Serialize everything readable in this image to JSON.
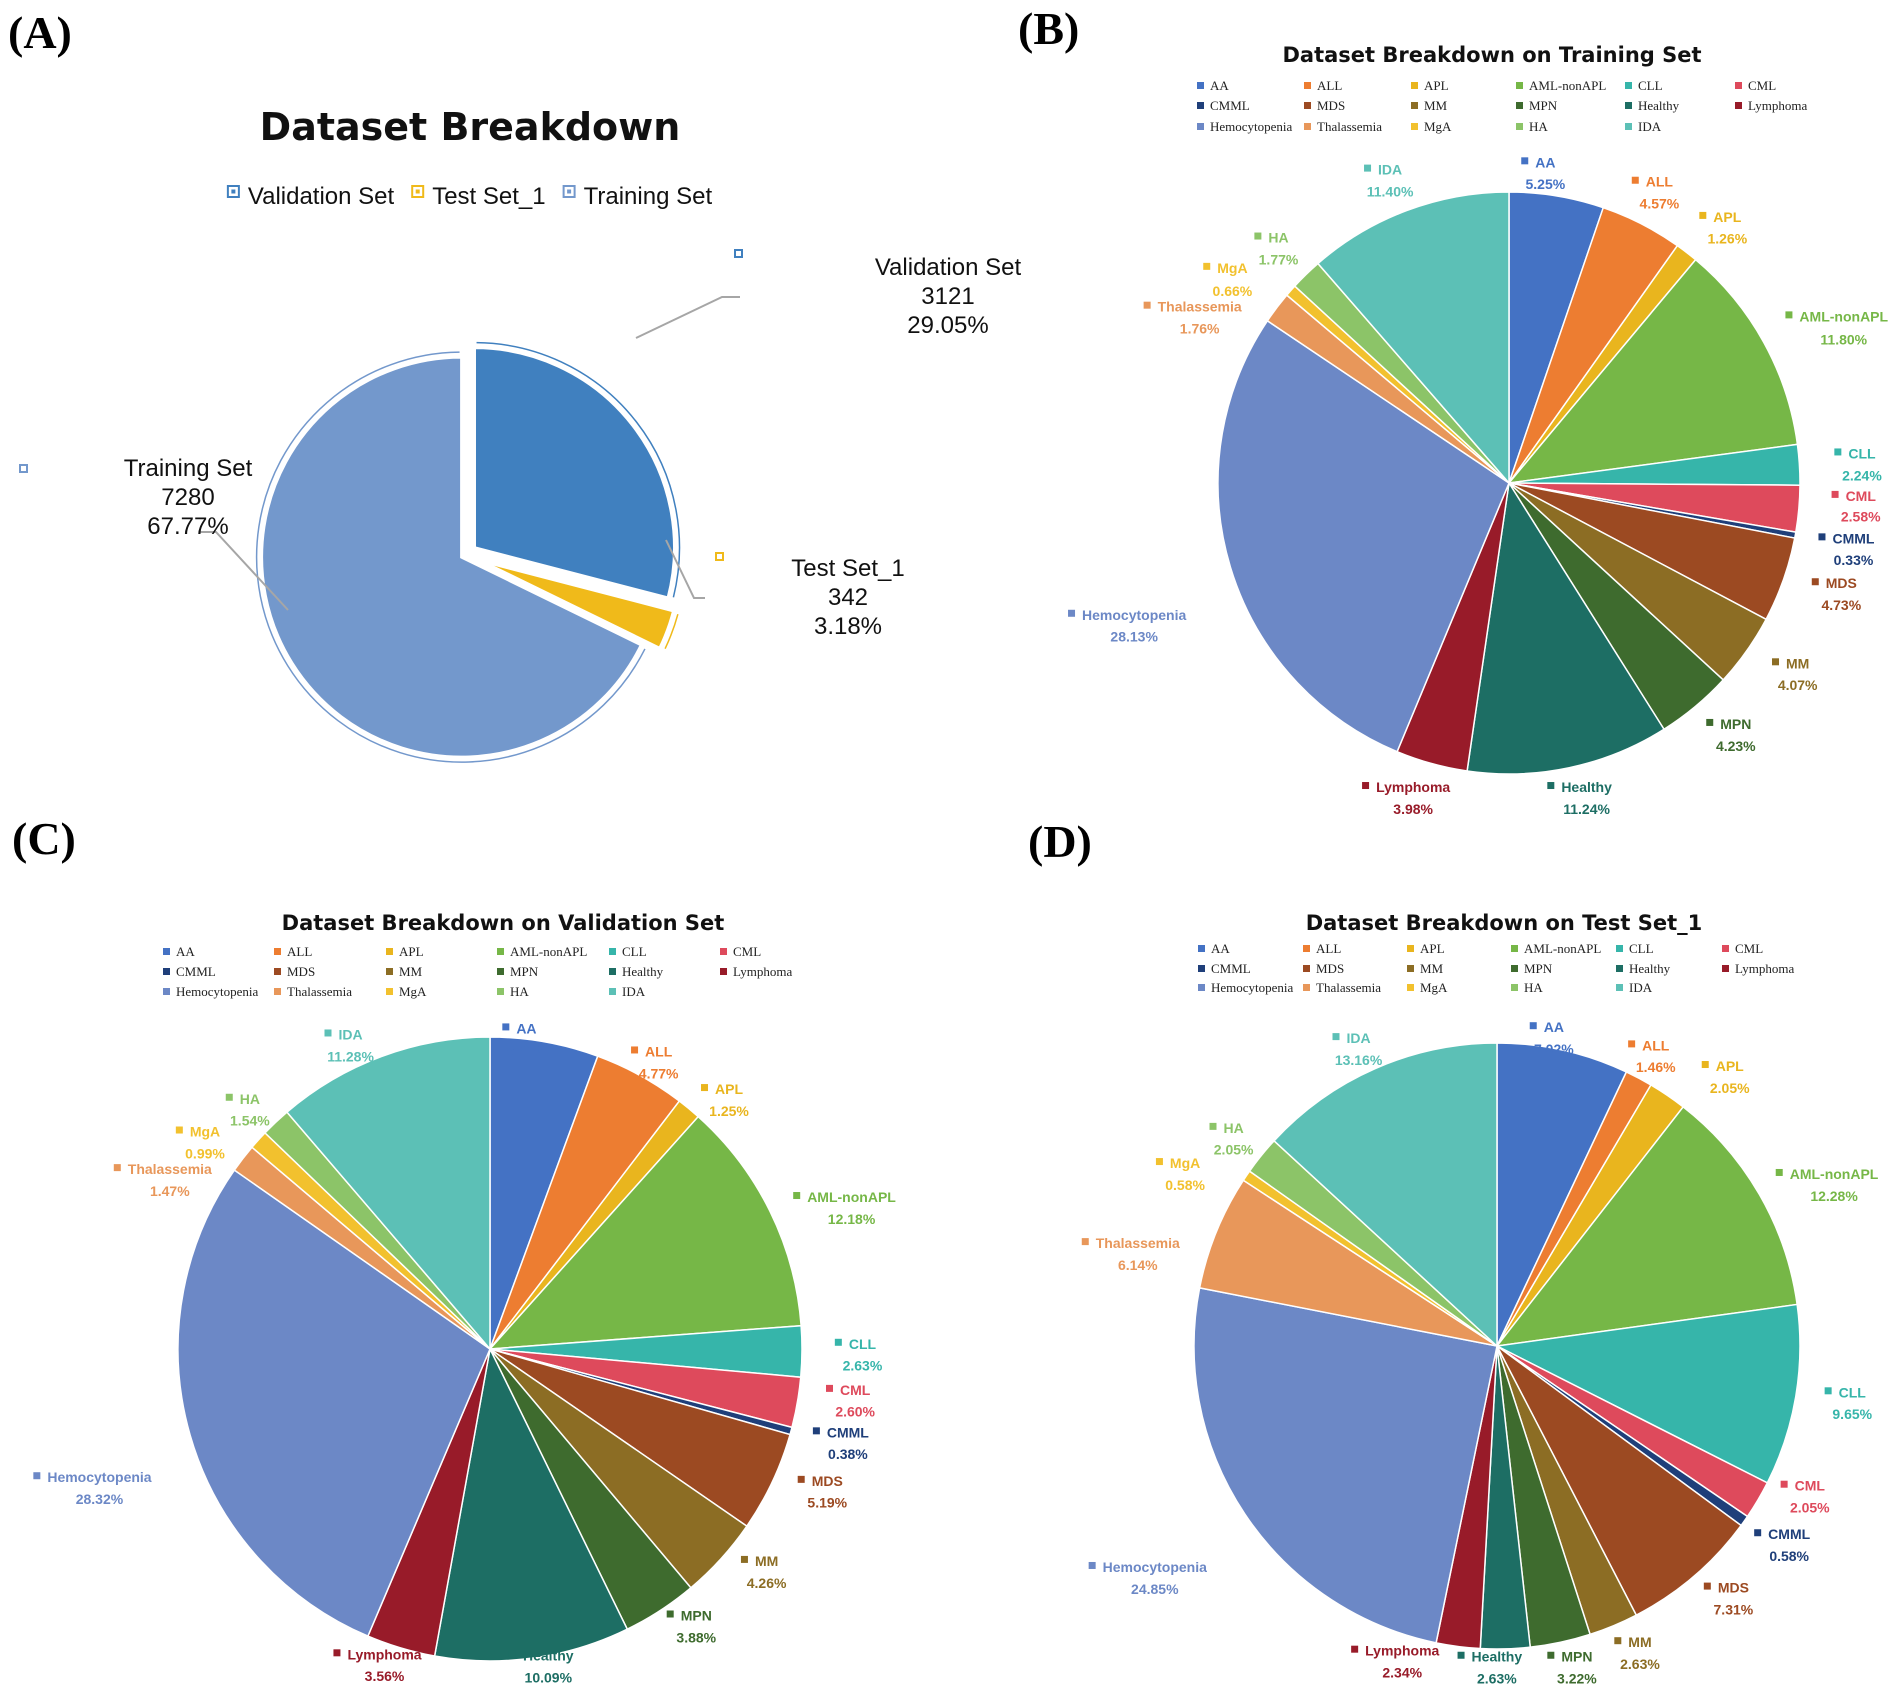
{
  "panels": [
    "(A)",
    "(B)",
    "(C)",
    "(D)"
  ],
  "colors": {
    "AA": "#4472C4",
    "ALL": "#ED7D31",
    "APL": "#E9B51E",
    "AML-nonAPL": "#76B747",
    "CLL": "#36B5AA",
    "CML": "#DE4A5C",
    "CMML": "#1F3F7A",
    "MDS": "#9C4A22",
    "MM": "#8C6D24",
    "MPN": "#3E6B2E",
    "Healthy": "#1D6E64",
    "Lymphoma": "#981B29",
    "Hemocytopenia": "#6C88C6",
    "Thalassemia": "#E8975A",
    "MgA": "#F2C12E",
    "HA": "#8CC468",
    "IDA": "#5CC0B6",
    "Validation Set": "#4080BF",
    "Test Set_1": "#F0BA1A",
    "Training Set": "#7398CC"
  },
  "chart_data": [
    {
      "type": "pie",
      "title": "Dataset Breakdown",
      "legend": [
        "Validation Set",
        "Test Set_1",
        "Training Set"
      ],
      "legend_position": "top",
      "slices": [
        {
          "label": "Validation Set",
          "count": "3121",
          "percent": "29.05%",
          "value": 29.05
        },
        {
          "label": "Test Set_1",
          "count": "342",
          "percent": "3.18%",
          "value": 3.18
        },
        {
          "label": "Training Set",
          "count": "7280",
          "percent": "67.77%",
          "value": 67.77
        }
      ]
    },
    {
      "type": "pie",
      "title": "Dataset Breakdown on Training Set",
      "legend_position": "top",
      "slices": [
        {
          "label": "AA",
          "percent": "5.25%",
          "value": 5.25
        },
        {
          "label": "ALL",
          "percent": "4.57%",
          "value": 4.57
        },
        {
          "label": "APL",
          "percent": "1.26%",
          "value": 1.26
        },
        {
          "label": "AML-nonAPL",
          "percent": "11.80%",
          "value": 11.8
        },
        {
          "label": "CLL",
          "percent": "2.24%",
          "value": 2.24
        },
        {
          "label": "CML",
          "percent": "2.58%",
          "value": 2.58
        },
        {
          "label": "CMML",
          "percent": "0.33%",
          "value": 0.33
        },
        {
          "label": "MDS",
          "percent": "4.73%",
          "value": 4.73
        },
        {
          "label": "MM",
          "percent": "4.07%",
          "value": 4.07
        },
        {
          "label": "MPN",
          "percent": "4.23%",
          "value": 4.23
        },
        {
          "label": "Healthy",
          "percent": "11.24%",
          "value": 11.24
        },
        {
          "label": "Lymphoma",
          "percent": "3.98%",
          "value": 3.98
        },
        {
          "label": "Hemocytopenia",
          "percent": "28.13%",
          "value": 28.13
        },
        {
          "label": "Thalassemia",
          "percent": "1.76%",
          "value": 1.76
        },
        {
          "label": "MgA",
          "percent": "0.66%",
          "value": 0.66
        },
        {
          "label": "HA",
          "percent": "1.77%",
          "value": 1.77
        },
        {
          "label": "IDA",
          "percent": "11.40%",
          "value": 11.4
        }
      ]
    },
    {
      "type": "pie",
      "title": "Dataset Breakdown on Validation Set",
      "legend_position": "top",
      "slices": [
        {
          "label": "AA",
          "percent": "5.61%",
          "value": 5.61
        },
        {
          "label": "ALL",
          "percent": "4.77%",
          "value": 4.77
        },
        {
          "label": "APL",
          "percent": "1.25%",
          "value": 1.25
        },
        {
          "label": "AML-nonAPL",
          "percent": "12.18%",
          "value": 12.18
        },
        {
          "label": "CLL",
          "percent": "2.63%",
          "value": 2.63
        },
        {
          "label": "CML",
          "percent": "2.60%",
          "value": 2.6
        },
        {
          "label": "CMML",
          "percent": "0.38%",
          "value": 0.38
        },
        {
          "label": "MDS",
          "percent": "5.19%",
          "value": 5.19
        },
        {
          "label": "MM",
          "percent": "4.26%",
          "value": 4.26
        },
        {
          "label": "MPN",
          "percent": "3.88%",
          "value": 3.88
        },
        {
          "label": "Healthy",
          "percent": "10.09%",
          "value": 10.09
        },
        {
          "label": "Lymphoma",
          "percent": "3.56%",
          "value": 3.56
        },
        {
          "label": "Hemocytopenia",
          "percent": "28.32%",
          "value": 28.32
        },
        {
          "label": "Thalassemia",
          "percent": "1.47%",
          "value": 1.47
        },
        {
          "label": "MgA",
          "percent": "0.99%",
          "value": 0.99
        },
        {
          "label": "HA",
          "percent": "1.54%",
          "value": 1.54
        },
        {
          "label": "IDA",
          "percent": "11.28%",
          "value": 11.28
        }
      ]
    },
    {
      "type": "pie",
      "title": "Dataset Breakdown on Test Set_1",
      "legend_position": "top",
      "slices": [
        {
          "label": "AA",
          "percent": "7.02%",
          "value": 7.02
        },
        {
          "label": "ALL",
          "percent": "1.46%",
          "value": 1.46
        },
        {
          "label": "APL",
          "percent": "2.05%",
          "value": 2.05
        },
        {
          "label": "AML-nonAPL",
          "percent": "12.28%",
          "value": 12.28
        },
        {
          "label": "CLL",
          "percent": "9.65%",
          "value": 9.65
        },
        {
          "label": "CML",
          "percent": "2.05%",
          "value": 2.05
        },
        {
          "label": "CMML",
          "percent": "0.58%",
          "value": 0.58
        },
        {
          "label": "MDS",
          "percent": "7.31%",
          "value": 7.31
        },
        {
          "label": "MM",
          "percent": "2.63%",
          "value": 2.63
        },
        {
          "label": "MPN",
          "percent": "3.22%",
          "value": 3.22
        },
        {
          "label": "Healthy",
          "percent": "2.63%",
          "value": 2.63
        },
        {
          "label": "Lymphoma",
          "percent": "2.34%",
          "value": 2.34
        },
        {
          "label": "Hemocytopenia",
          "percent": "24.85%",
          "value": 24.85
        },
        {
          "label": "Thalassemia",
          "percent": "6.14%",
          "value": 6.14
        },
        {
          "label": "MgA",
          "percent": "0.58%",
          "value": 0.58
        },
        {
          "label": "HA",
          "percent": "2.05%",
          "value": 2.05
        },
        {
          "label": "IDA",
          "percent": "13.16%",
          "value": 13.16
        }
      ]
    }
  ]
}
